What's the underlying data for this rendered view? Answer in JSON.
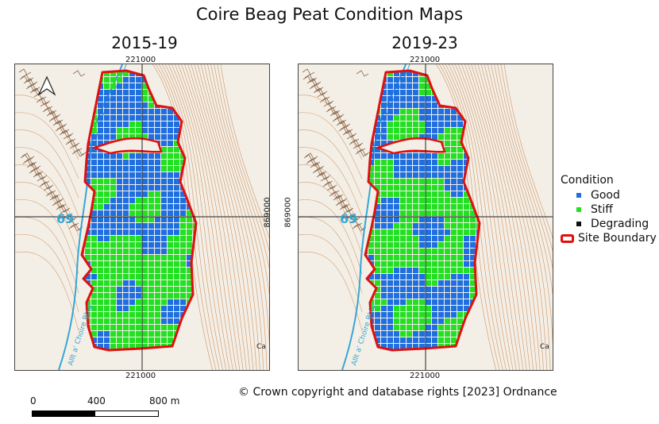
{
  "title": "Coire Beag Peat Condition Maps",
  "panels": [
    {
      "title": "2015-19",
      "coord_top": "221000",
      "coord_bottom": "221000",
      "coord_side": "869000"
    },
    {
      "title": "2019-23",
      "coord_top": "221000",
      "coord_bottom": "221000",
      "coord_side": "869000"
    }
  ],
  "map_labels": {
    "grid_number": "69",
    "stream": "Allt a' Choire Bhig",
    "edge_text": "Ca"
  },
  "legend": {
    "title": "Condition",
    "items": [
      {
        "label": "Good",
        "color": "#1f6fe0"
      },
      {
        "label": "Stiff",
        "color": "#22e022"
      },
      {
        "label": "Degrading",
        "color": "#111111"
      },
      {
        "label": "Site Boundary",
        "color": "#e01010"
      }
    ]
  },
  "copyright": "© Crown copyright and database rights [2023] Ordnance",
  "scale": {
    "labels": [
      "0",
      "400",
      "800 m"
    ]
  },
  "colors": {
    "boundary": "#e01010",
    "good": "#1f6fe0",
    "stiff": "#22e022",
    "contour": "#c98b5a",
    "water": "#36a6d6"
  }
}
